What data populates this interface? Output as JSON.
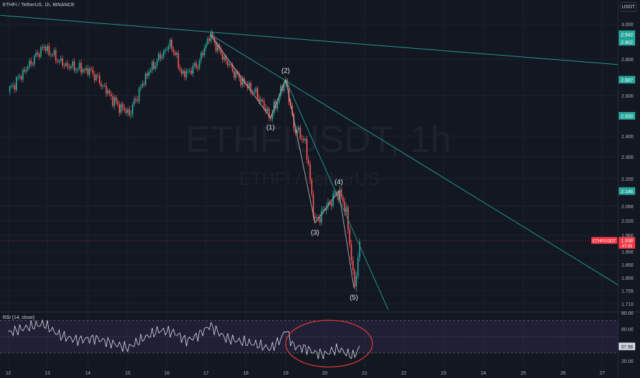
{
  "header": {
    "title": "ETHFI / TetherUS, 1h, BINANCE"
  },
  "toolbar": {
    "currency_label": "USDT"
  },
  "watermark": {
    "symbol_line": "ETHFIUSDT, 1h",
    "pair_line": "ETHFI / TetherUS"
  },
  "colors": {
    "background": "#131722",
    "up": "#26a69a",
    "down": "#ef5350",
    "trendline": "#1f9e8f",
    "rsi_band": "#7e57c2",
    "circle": "#e53935"
  },
  "chart_data": [
    {
      "type": "candlestick",
      "symbol": "ETHFIUSDT",
      "interval": "1h",
      "exchange": "BINANCE",
      "price_axis_ticks": [
        3.0,
        2.8,
        2.6,
        2.4,
        2.3,
        2.2,
        2.08,
        2.02,
        1.96,
        1.9,
        1.85,
        1.8,
        1.755,
        1.71
      ],
      "price_axis_tick_labels": [
        "3.000",
        "2.800",
        "2.600",
        "2.400",
        "2.300",
        "2.200",
        "2.080",
        "2.020",
        "1.960",
        "1.900",
        "1.850",
        "1.800",
        "1.755",
        "1.710"
      ],
      "date_labels": [
        "12",
        "13",
        "14",
        "15",
        "16",
        "17",
        "18",
        "19",
        "20",
        "21",
        "22",
        "23",
        "24",
        "25",
        "26",
        "27"
      ],
      "price_labels": [
        {
          "text": "2.942",
          "color": "#26a69a"
        },
        {
          "text": "2.902",
          "color": "#26a69a"
        },
        {
          "text": "2.687",
          "color": "#26a69a"
        },
        {
          "text": "2.500",
          "color": "#26a69a"
        },
        {
          "text": "2.146",
          "color": "#26a69a"
        }
      ],
      "current_price": {
        "symbol": "ETHFIUSDT",
        "price": "1.938",
        "countdown": "47:39",
        "color": "#f23645"
      },
      "wave_labels": [
        {
          "label": "(1)",
          "date": 18.62,
          "price": 2.49
        },
        {
          "label": "(2)",
          "date": 19.0,
          "price": 2.687
        },
        {
          "label": "(3)",
          "date": 19.75,
          "price": 2.01
        },
        {
          "label": "(4)",
          "date": 20.35,
          "price": 2.146
        },
        {
          "label": "(5)",
          "date": 20.73,
          "price": 1.765
        }
      ],
      "key_prices": [
        {
          "date": 12.0,
          "price": 2.62
        },
        {
          "date": 12.9,
          "price": 2.87
        },
        {
          "date": 13.4,
          "price": 2.77
        },
        {
          "date": 14.1,
          "price": 2.73
        },
        {
          "date": 14.7,
          "price": 2.56
        },
        {
          "date": 15.05,
          "price": 2.51
        },
        {
          "date": 15.5,
          "price": 2.72
        },
        {
          "date": 16.1,
          "price": 2.89
        },
        {
          "date": 16.4,
          "price": 2.71
        },
        {
          "date": 16.8,
          "price": 2.77
        },
        {
          "date": 17.1,
          "price": 2.942
        },
        {
          "date": 17.4,
          "price": 2.82
        },
        {
          "date": 17.8,
          "price": 2.7
        },
        {
          "date": 18.3,
          "price": 2.6
        },
        {
          "date": 18.62,
          "price": 2.49
        },
        {
          "date": 19.0,
          "price": 2.687
        },
        {
          "date": 19.2,
          "price": 2.45
        },
        {
          "date": 19.5,
          "price": 2.37
        },
        {
          "date": 19.75,
          "price": 2.01
        },
        {
          "date": 20.0,
          "price": 2.07
        },
        {
          "date": 20.35,
          "price": 2.146
        },
        {
          "date": 20.55,
          "price": 2.05
        },
        {
          "date": 20.73,
          "price": 1.765
        },
        {
          "date": 20.9,
          "price": 1.938
        }
      ],
      "trendlines": [
        {
          "from": {
            "date": 11.8,
            "price": 3.05
          },
          "to": {
            "date": 27.4,
            "price": 2.77
          }
        },
        {
          "from": {
            "date": 17.1,
            "price": 2.942
          },
          "to": {
            "date": 27.4,
            "price": 1.775
          }
        },
        {
          "from": {
            "date": 19.0,
            "price": 2.687
          },
          "to": {
            "date": 21.6,
            "price": 1.69
          }
        }
      ]
    },
    {
      "type": "line",
      "indicator": "RSI",
      "label": "RSI (14, close)",
      "axis_ticks": [
        80,
        60,
        40,
        20
      ],
      "axis_tick_labels": [
        "80.00",
        "60.00",
        "40.00",
        "20.00"
      ],
      "band": [
        30,
        70
      ],
      "current_value_label": "37.98",
      "values_by_date": [
        {
          "date": 12.0,
          "value": 55
        },
        {
          "date": 12.5,
          "value": 62
        },
        {
          "date": 12.9,
          "value": 66
        },
        {
          "date": 13.3,
          "value": 52
        },
        {
          "date": 13.7,
          "value": 46
        },
        {
          "date": 14.2,
          "value": 48
        },
        {
          "date": 14.6,
          "value": 42
        },
        {
          "date": 15.0,
          "value": 36
        },
        {
          "date": 15.4,
          "value": 48
        },
        {
          "date": 15.8,
          "value": 58
        },
        {
          "date": 16.2,
          "value": 55
        },
        {
          "date": 16.5,
          "value": 45
        },
        {
          "date": 16.8,
          "value": 52
        },
        {
          "date": 17.1,
          "value": 64
        },
        {
          "date": 17.5,
          "value": 48
        },
        {
          "date": 17.9,
          "value": 44
        },
        {
          "date": 18.3,
          "value": 40
        },
        {
          "date": 18.62,
          "value": 35
        },
        {
          "date": 18.9,
          "value": 48
        },
        {
          "date": 19.0,
          "value": 60
        },
        {
          "date": 19.2,
          "value": 38
        },
        {
          "date": 19.5,
          "value": 36
        },
        {
          "date": 19.75,
          "value": 30
        },
        {
          "date": 20.0,
          "value": 28
        },
        {
          "date": 20.2,
          "value": 33
        },
        {
          "date": 20.35,
          "value": 35
        },
        {
          "date": 20.55,
          "value": 29
        },
        {
          "date": 20.73,
          "value": 26
        },
        {
          "date": 20.9,
          "value": 37.98
        }
      ],
      "highlight": {
        "shape": "ellipse",
        "from_date": 19.0,
        "to_date": 21.2,
        "color": "#e53935"
      }
    }
  ]
}
